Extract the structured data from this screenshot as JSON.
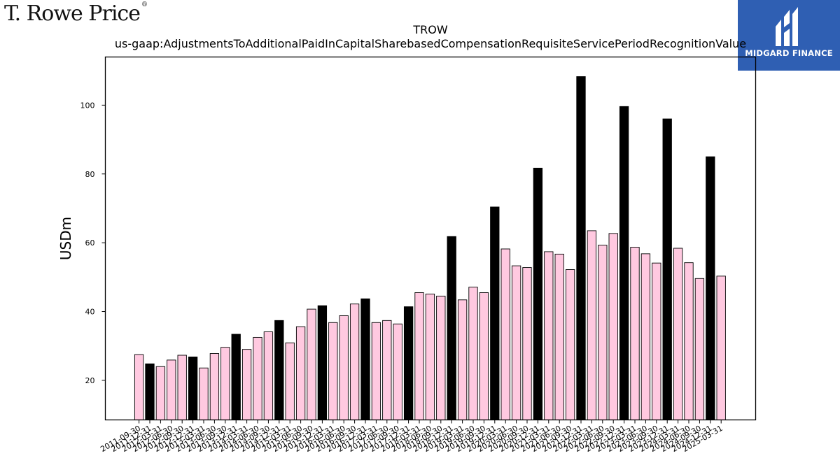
{
  "logo_left": {
    "text": "T. Rowe Price",
    "mark": "®"
  },
  "logo_right": {
    "text": "MIDGARD FINANCE",
    "icon": "midgard-m-logo"
  },
  "chart_data": {
    "type": "bar",
    "title": "TROW",
    "subtitle": "us-gaap:AdjustmentsToAdditionalPaidInCapitalSharebasedCompensationRequisiteServicePeriodRecognitionValue",
    "ylabel": "USDm",
    "xlabel": "",
    "ylim": [
      8.5,
      114
    ],
    "yticks": [
      20,
      40,
      60,
      80,
      100
    ],
    "grid": false,
    "colors": {
      "quarter": "#ffc9e0",
      "year_end": "#000000",
      "edge": "#000000"
    },
    "categories": [
      "2011-09-30",
      "2011-12-31",
      "2012-03-31",
      "2012-06-30",
      "2012-09-30",
      "2012-12-31",
      "2013-03-31",
      "2013-06-30",
      "2013-09-30",
      "2013-12-31",
      "2014-03-31",
      "2014-06-30",
      "2014-09-30",
      "2014-12-31",
      "2015-03-31",
      "2015-06-30",
      "2015-09-30",
      "2015-12-31",
      "2016-03-31",
      "2016-06-30",
      "2016-09-30",
      "2016-12-31",
      "2017-03-31",
      "2017-06-30",
      "2017-09-30",
      "2017-12-31",
      "2018-03-31",
      "2018-06-30",
      "2018-09-30",
      "2018-12-31",
      "2019-03-31",
      "2019-06-30",
      "2019-09-30",
      "2019-12-31",
      "2020-03-31",
      "2020-06-30",
      "2020-09-30",
      "2020-12-31",
      "2021-03-31",
      "2021-06-30",
      "2021-09-30",
      "2021-12-31",
      "2022-03-31",
      "2022-06-30",
      "2022-09-30",
      "2022-12-31",
      "2023-03-31",
      "2023-06-30",
      "2023-09-30",
      "2023-12-31",
      "2024-03-31",
      "2024-06-30",
      "2024-09-30",
      "2024-12-31",
      "2025-03-31"
    ],
    "values": [
      27.5,
      24.8,
      24.0,
      25.9,
      27.3,
      26.8,
      23.6,
      27.8,
      29.6,
      33.4,
      29.0,
      32.5,
      34.1,
      37.4,
      30.9,
      35.6,
      40.7,
      41.7,
      36.8,
      38.8,
      42.2,
      43.7,
      36.8,
      37.4,
      36.4,
      41.4,
      45.5,
      45.1,
      44.5,
      61.8,
      43.4,
      47.1,
      45.5,
      70.4,
      58.2,
      53.3,
      52.8,
      81.7,
      57.4,
      56.7,
      52.2,
      108.3,
      63.5,
      59.3,
      62.7,
      99.6,
      58.7,
      56.8,
      54.1,
      96.0,
      58.4,
      54.2,
      49.6,
      85.0,
      50.3
    ],
    "year_end": [
      false,
      true,
      false,
      false,
      false,
      true,
      false,
      false,
      false,
      true,
      false,
      false,
      false,
      true,
      false,
      false,
      false,
      true,
      false,
      false,
      false,
      true,
      false,
      false,
      false,
      true,
      false,
      false,
      false,
      true,
      false,
      false,
      false,
      true,
      false,
      false,
      false,
      true,
      false,
      false,
      false,
      true,
      false,
      false,
      false,
      true,
      false,
      false,
      false,
      true,
      false,
      false,
      false,
      true,
      false
    ]
  }
}
